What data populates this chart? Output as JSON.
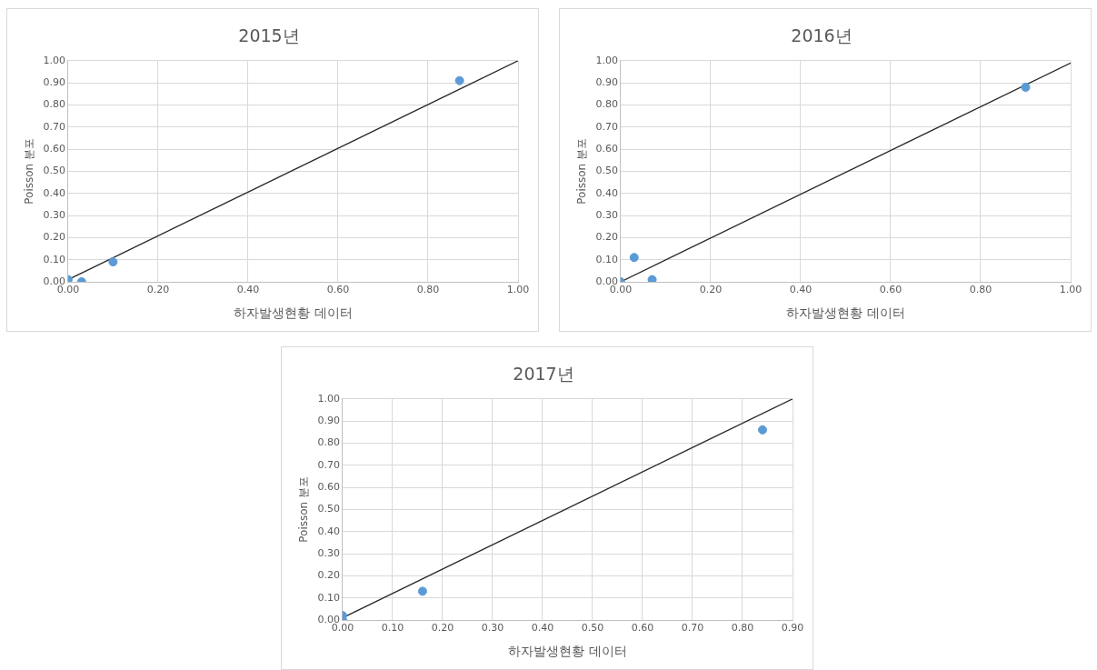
{
  "chart_data": [
    {
      "type": "scatter",
      "title": "2015년",
      "xlabel": "하자발생현황 데이터",
      "ylabel": "Poisson 분포",
      "grid": true,
      "xlim": [
        0,
        1
      ],
      "ylim": [
        0,
        1
      ],
      "xticks": [
        {
          "value": 0,
          "label": "0.00"
        },
        {
          "value": 0.2,
          "label": "0.20"
        },
        {
          "value": 0.4,
          "label": "0.40"
        },
        {
          "value": 0.6,
          "label": "0.60"
        },
        {
          "value": 0.8,
          "label": "0.80"
        },
        {
          "value": 1,
          "label": "1.00"
        }
      ],
      "yticks": [
        {
          "value": 0,
          "label": "0.00"
        },
        {
          "value": 0.1,
          "label": "0.10"
        },
        {
          "value": 0.2,
          "label": "0.20"
        },
        {
          "value": 0.3,
          "label": "0.30"
        },
        {
          "value": 0.4,
          "label": "0.40"
        },
        {
          "value": 0.5,
          "label": "0.50"
        },
        {
          "value": 0.6,
          "label": "0.60"
        },
        {
          "value": 0.7,
          "label": "0.70"
        },
        {
          "value": 0.8,
          "label": "0.80"
        },
        {
          "value": 0.9,
          "label": "0.90"
        },
        {
          "value": 1,
          "label": "1.00"
        }
      ],
      "series": [
        {
          "type": "scatter",
          "marker": "circle",
          "color": "#5b9bd5",
          "x": [
            0.0,
            0.03,
            0.1,
            0.87
          ],
          "values": [
            0.01,
            0.0,
            0.09,
            0.91
          ]
        },
        {
          "type": "line",
          "marker": "none",
          "color": "#262626",
          "x": [
            0,
            1
          ],
          "values": [
            0.01,
            1.0
          ]
        }
      ]
    },
    {
      "type": "scatter",
      "title": "2016년",
      "xlabel": "하자발생현황 데이터",
      "ylabel": "Poisson 분포",
      "grid": true,
      "xlim": [
        0,
        1
      ],
      "ylim": [
        0,
        1
      ],
      "xticks": [
        {
          "value": 0,
          "label": "0.00"
        },
        {
          "value": 0.2,
          "label": "0.20"
        },
        {
          "value": 0.4,
          "label": "0.40"
        },
        {
          "value": 0.6,
          "label": "0.60"
        },
        {
          "value": 0.8,
          "label": "0.80"
        },
        {
          "value": 1,
          "label": "1.00"
        }
      ],
      "yticks": [
        {
          "value": 0,
          "label": "0.00"
        },
        {
          "value": 0.1,
          "label": "0.10"
        },
        {
          "value": 0.2,
          "label": "0.20"
        },
        {
          "value": 0.3,
          "label": "0.30"
        },
        {
          "value": 0.4,
          "label": "0.40"
        },
        {
          "value": 0.5,
          "label": "0.50"
        },
        {
          "value": 0.6,
          "label": "0.60"
        },
        {
          "value": 0.7,
          "label": "0.70"
        },
        {
          "value": 0.8,
          "label": "0.80"
        },
        {
          "value": 0.9,
          "label": "0.90"
        },
        {
          "value": 1,
          "label": "1.00"
        }
      ],
      "series": [
        {
          "type": "scatter",
          "marker": "circle",
          "color": "#5b9bd5",
          "x": [
            0.0,
            0.03,
            0.07,
            0.9
          ],
          "values": [
            0.0,
            0.11,
            0.01,
            0.88
          ]
        },
        {
          "type": "line",
          "marker": "none",
          "color": "#262626",
          "x": [
            0,
            1
          ],
          "values": [
            0.0,
            0.99
          ]
        }
      ]
    },
    {
      "type": "scatter",
      "title": "2017년",
      "xlabel": "하자발생현황 데이터",
      "ylabel": "Poisson 분포",
      "grid": true,
      "xlim": [
        0,
        0.9
      ],
      "ylim": [
        0,
        1
      ],
      "xticks": [
        {
          "value": 0,
          "label": "0.00"
        },
        {
          "value": 0.1,
          "label": "0.10"
        },
        {
          "value": 0.2,
          "label": "0.20"
        },
        {
          "value": 0.3,
          "label": "0.30"
        },
        {
          "value": 0.4,
          "label": "0.40"
        },
        {
          "value": 0.5,
          "label": "0.50"
        },
        {
          "value": 0.6,
          "label": "0.60"
        },
        {
          "value": 0.7,
          "label": "0.70"
        },
        {
          "value": 0.8,
          "label": "0.80"
        },
        {
          "value": 0.9,
          "label": "0.90"
        }
      ],
      "yticks": [
        {
          "value": 0,
          "label": "0.00"
        },
        {
          "value": 0.1,
          "label": "0.10"
        },
        {
          "value": 0.2,
          "label": "0.20"
        },
        {
          "value": 0.3,
          "label": "0.30"
        },
        {
          "value": 0.4,
          "label": "0.40"
        },
        {
          "value": 0.5,
          "label": "0.50"
        },
        {
          "value": 0.6,
          "label": "0.60"
        },
        {
          "value": 0.7,
          "label": "0.70"
        },
        {
          "value": 0.8,
          "label": "0.80"
        },
        {
          "value": 0.9,
          "label": "0.90"
        },
        {
          "value": 1,
          "label": "1.00"
        }
      ],
      "series": [
        {
          "type": "scatter",
          "marker": "circle",
          "color": "#5b9bd5",
          "x": [
            0.0,
            0.0,
            0.16,
            0.84
          ],
          "values": [
            0.02,
            0.0,
            0.13,
            0.86
          ]
        },
        {
          "type": "line",
          "marker": "none",
          "color": "#262626",
          "x": [
            0,
            0.9
          ],
          "values": [
            0.01,
            1.0
          ]
        }
      ]
    }
  ]
}
